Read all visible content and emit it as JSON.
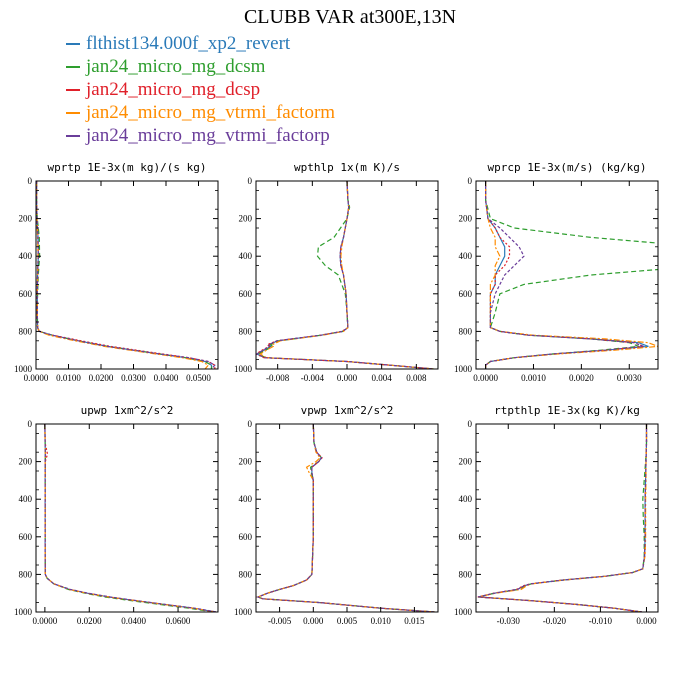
{
  "title": "CLUBB VAR at300E,13N",
  "series": [
    {
      "name": "flthist134.000f_xp2_revert",
      "color": "#2a7ab8"
    },
    {
      "name": "jan24_micro_mg_dcsm",
      "color": "#2e9e2e"
    },
    {
      "name": "jan24_micro_mg_dcsp",
      "color": "#e0202a"
    },
    {
      "name": "jan24_micro_mg_vtrmi_factorm",
      "color": "#ff8c00"
    },
    {
      "name": "jan24_micro_mg_vtrmi_factorp",
      "color": "#6a3d9a"
    }
  ],
  "chart_data": [
    {
      "type": "line",
      "title": "wprtp  1E-3x(m kg)/(s kg)",
      "xlim": [
        0,
        0.056
      ],
      "ylim": [
        0,
        1000
      ],
      "y_reversed": true,
      "xticks": [
        "0.0000",
        "0.0100",
        "0.0200",
        "0.0300",
        "0.0400",
        "0.0500"
      ],
      "xtick_values": [
        0,
        0.01,
        0.02,
        0.03,
        0.04,
        0.05
      ],
      "yticks": [
        "0",
        "200",
        "400",
        "600",
        "800",
        "1000"
      ],
      "ytick_values": [
        0,
        200,
        400,
        600,
        800,
        1000
      ],
      "y": [
        0,
        100,
        200,
        300,
        400,
        500,
        600,
        700,
        780,
        800,
        820,
        850,
        880,
        900,
        920,
        940,
        960,
        980,
        1000
      ],
      "values": [
        [
          0.0002,
          0.0002,
          0.0003,
          0.0006,
          0.0007,
          0.0005,
          0.0004,
          0.0004,
          0.0005,
          0.001,
          0.005,
          0.013,
          0.022,
          0.03,
          0.038,
          0.046,
          0.052,
          0.054,
          0.054
        ],
        [
          0.0002,
          0.0002,
          0.0004,
          0.001,
          0.0011,
          0.0007,
          0.0005,
          0.0004,
          0.0005,
          0.001,
          0.005,
          0.013,
          0.022,
          0.03,
          0.038,
          0.046,
          0.052,
          0.054,
          0.054
        ],
        [
          0.0002,
          0.0002,
          0.0003,
          0.0006,
          0.0007,
          0.0005,
          0.0004,
          0.0004,
          0.0005,
          0.001,
          0.005,
          0.014,
          0.023,
          0.031,
          0.039,
          0.047,
          0.053,
          0.055,
          0.055
        ],
        [
          0.0002,
          0.0002,
          0.0003,
          0.0005,
          0.0006,
          0.0005,
          0.0004,
          0.0004,
          0.0005,
          0.001,
          0.004,
          0.012,
          0.021,
          0.029,
          0.037,
          0.045,
          0.051,
          0.053,
          0.052
        ],
        [
          0.0002,
          0.0002,
          0.0003,
          0.0006,
          0.0007,
          0.0005,
          0.0004,
          0.0004,
          0.0005,
          0.001,
          0.005,
          0.013,
          0.022,
          0.03,
          0.038,
          0.047,
          0.053,
          0.055,
          0.054
        ]
      ]
    },
    {
      "type": "line",
      "title": "wpthlp  1x(m K)/s",
      "xlim": [
        -0.0105,
        0.0105
      ],
      "ylim": [
        0,
        1000
      ],
      "y_reversed": true,
      "xticks": [
        "-0.008",
        "-0.004",
        "0.000",
        "0.004",
        "0.008"
      ],
      "xtick_values": [
        -0.008,
        -0.004,
        0,
        0.004,
        0.008
      ],
      "yticks": [
        "0",
        "200",
        "400",
        "600",
        "800",
        "1000"
      ],
      "ytick_values": [
        0,
        200,
        400,
        600,
        800,
        1000
      ],
      "y": [
        0,
        100,
        140,
        200,
        300,
        350,
        400,
        450,
        500,
        600,
        700,
        780,
        800,
        820,
        850,
        870,
        880,
        900,
        920,
        940,
        960,
        980,
        1000
      ],
      "values": [
        [
          0.0,
          0.0001,
          0.0002,
          0.0,
          -0.0004,
          -0.0007,
          -0.0008,
          -0.0007,
          -0.0004,
          -0.0001,
          0.0,
          0.0001,
          -0.0005,
          -0.003,
          -0.008,
          -0.009,
          -0.0088,
          -0.0096,
          -0.0104,
          -0.0095,
          0.0,
          0.005,
          0.01
        ],
        [
          0.0,
          0.0001,
          0.0003,
          0.0,
          -0.0015,
          -0.0033,
          -0.0034,
          -0.0025,
          -0.001,
          -0.0002,
          0.0,
          0.0001,
          -0.0005,
          -0.003,
          -0.0078,
          -0.0088,
          -0.0086,
          -0.0094,
          -0.0102,
          -0.0094,
          0.0,
          0.005,
          0.01
        ],
        [
          0.0,
          0.0001,
          0.0002,
          0.0,
          -0.0004,
          -0.0007,
          -0.0008,
          -0.0007,
          -0.0004,
          -0.0001,
          0.0,
          0.0001,
          -0.0006,
          -0.0031,
          -0.0081,
          -0.0092,
          -0.009,
          -0.0098,
          -0.0105,
          -0.0096,
          0.0,
          0.005,
          0.01
        ],
        [
          0.0,
          0.0001,
          0.0002,
          0.0,
          -0.0004,
          -0.0006,
          -0.0007,
          -0.0006,
          -0.0004,
          -0.0001,
          0.0,
          0.0001,
          -0.0004,
          -0.0028,
          -0.0077,
          -0.0086,
          -0.0085,
          -0.0093,
          -0.01,
          -0.0093,
          0.0,
          0.005,
          0.01
        ],
        [
          0.0,
          0.0001,
          0.0002,
          0.0,
          -0.0004,
          -0.0007,
          -0.0008,
          -0.0007,
          -0.0004,
          -0.0001,
          0.0,
          0.0001,
          -0.0005,
          -0.003,
          -0.0081,
          -0.009,
          -0.0089,
          -0.0097,
          -0.0104,
          -0.0095,
          0.0,
          0.005,
          0.01
        ]
      ]
    },
    {
      "type": "line",
      "title": "wprcp  1E-3x(m/s) (kg/kg)",
      "xlim": [
        -0.0002,
        0.0036
      ],
      "ylim": [
        0,
        1000
      ],
      "y_reversed": true,
      "xticks": [
        "0.0000",
        "0.0010",
        "0.0020",
        "0.0030"
      ],
      "xtick_values": [
        0,
        0.001,
        0.002,
        0.003
      ],
      "yticks": [
        "0",
        "200",
        "400",
        "600",
        "800",
        "1000"
      ],
      "ytick_values": [
        0,
        200,
        400,
        600,
        800,
        1000
      ],
      "y": [
        0,
        100,
        200,
        250,
        300,
        350,
        400,
        450,
        500,
        550,
        600,
        700,
        780,
        800,
        820,
        840,
        860,
        880,
        900,
        920,
        940,
        960,
        980,
        1000
      ],
      "values": [
        [
          0.0,
          0.0,
          5e-05,
          0.0002,
          0.0003,
          0.0004,
          0.0004,
          0.0003,
          0.0002,
          0.0002,
          0.0001,
          0.0001,
          0.0001,
          0.0003,
          0.0009,
          0.0022,
          0.0032,
          0.0034,
          0.0025,
          0.0014,
          0.0006,
          0.0001,
          0.0,
          0.0
        ],
        [
          0.0,
          0.0,
          0.0001,
          0.0006,
          0.0022,
          0.0045,
          0.0056,
          0.0046,
          0.0022,
          0.0008,
          0.0003,
          0.0002,
          0.0001,
          0.0003,
          0.0009,
          0.0022,
          0.003,
          0.0032,
          0.0024,
          0.0014,
          0.0006,
          0.0001,
          0.0,
          0.0
        ],
        [
          0.0,
          0.0,
          5e-05,
          0.0002,
          0.0003,
          0.0005,
          0.0005,
          0.0004,
          0.0002,
          0.0002,
          0.0001,
          0.0001,
          0.0001,
          0.0003,
          0.0009,
          0.0022,
          0.0031,
          0.0033,
          0.0025,
          0.0014,
          0.0006,
          0.0001,
          0.0,
          0.0
        ],
        [
          0.0,
          0.0,
          5e-05,
          0.0001,
          0.0002,
          0.0002,
          0.0003,
          0.0002,
          0.0002,
          0.0001,
          0.0001,
          0.0001,
          0.0001,
          0.0003,
          0.001,
          0.0025,
          0.0034,
          0.0036,
          0.0027,
          0.0015,
          0.0006,
          0.0001,
          0.0,
          0.0
        ],
        [
          0.0,
          0.0,
          5e-05,
          0.0003,
          0.0005,
          0.0007,
          0.0008,
          0.0006,
          0.0004,
          0.0003,
          0.0002,
          0.0001,
          0.0001,
          0.0003,
          0.0009,
          0.0022,
          0.0031,
          0.0033,
          0.0025,
          0.0014,
          0.0006,
          0.0001,
          0.0,
          0.0
        ]
      ]
    },
    {
      "type": "line",
      "title": "upwp  1xm^2/s^2",
      "xlim": [
        -0.004,
        0.078
      ],
      "ylim": [
        0,
        1000
      ],
      "y_reversed": true,
      "xticks": [
        "0.0000",
        "0.0200",
        "0.0400",
        "0.0600"
      ],
      "xtick_values": [
        0,
        0.02,
        0.04,
        0.06
      ],
      "yticks": [
        "0",
        "200",
        "400",
        "600",
        "800",
        "1000"
      ],
      "ytick_values": [
        0,
        200,
        400,
        600,
        800,
        1000
      ],
      "y": [
        0,
        100,
        160,
        200,
        300,
        500,
        700,
        780,
        800,
        820,
        850,
        880,
        900,
        920,
        940,
        960,
        980,
        1000
      ],
      "values": [
        [
          0.0,
          0.0001,
          0.0002,
          0.0001,
          0.0001,
          0.0001,
          0.0001,
          0.0002,
          0.0002,
          0.001,
          0.004,
          0.011,
          0.019,
          0.029,
          0.041,
          0.054,
          0.067,
          0.077
        ],
        [
          0.0,
          0.0001,
          0.0003,
          0.0002,
          0.0001,
          0.0001,
          0.0001,
          0.0002,
          0.0002,
          0.001,
          0.004,
          0.0105,
          0.018,
          0.027,
          0.039,
          0.052,
          0.065,
          0.076
        ],
        [
          0.0,
          0.0001,
          0.0012,
          0.0002,
          0.0001,
          0.0001,
          0.0001,
          0.0002,
          0.0002,
          0.001,
          0.004,
          0.011,
          0.019,
          0.029,
          0.041,
          0.054,
          0.067,
          0.077
        ],
        [
          0.0,
          0.0001,
          0.0002,
          0.0001,
          0.0001,
          0.0001,
          0.0001,
          0.0002,
          0.0002,
          0.001,
          0.004,
          0.011,
          0.019,
          0.029,
          0.041,
          0.054,
          0.067,
          0.077
        ],
        [
          0.0,
          0.0001,
          0.0002,
          0.0001,
          0.0001,
          0.0001,
          0.0001,
          0.0002,
          0.0002,
          0.001,
          0.004,
          0.0115,
          0.0195,
          0.0295,
          0.0415,
          0.0545,
          0.0675,
          0.0775
        ]
      ]
    },
    {
      "type": "line",
      "title": "vpwp  1xm^2/s^2",
      "xlim": [
        -0.0085,
        0.0185
      ],
      "ylim": [
        0,
        1000
      ],
      "y_reversed": true,
      "xticks": [
        "-0.005",
        "0.000",
        "0.005",
        "0.010",
        "0.015"
      ],
      "xtick_values": [
        -0.005,
        0,
        0.005,
        0.01,
        0.015
      ],
      "yticks": [
        "0",
        "200",
        "400",
        "600",
        "800",
        "1000"
      ],
      "ytick_values": [
        0,
        200,
        400,
        600,
        800,
        1000
      ],
      "y": [
        0,
        100,
        150,
        180,
        200,
        230,
        260,
        300,
        400,
        600,
        800,
        830,
        860,
        880,
        900,
        920,
        930,
        950,
        980,
        1000
      ],
      "values": [
        [
          0.0,
          0.0001,
          0.0005,
          0.0012,
          0.0008,
          -0.0002,
          -0.0002,
          0.0,
          0.0,
          0.0,
          -0.0002,
          -0.001,
          -0.003,
          -0.005,
          -0.0068,
          -0.0082,
          -0.0075,
          0.001,
          0.01,
          0.018
        ],
        [
          0.0,
          0.0001,
          0.0005,
          0.0012,
          0.0008,
          -0.0004,
          -0.0003,
          0.0,
          0.0,
          0.0,
          -0.0002,
          -0.001,
          -0.003,
          -0.005,
          -0.0068,
          -0.0082,
          -0.0075,
          0.001,
          0.01,
          0.018
        ],
        [
          0.0,
          0.0001,
          0.0005,
          0.0013,
          0.0008,
          -0.0002,
          -0.0002,
          0.0,
          0.0,
          0.0,
          -0.0002,
          -0.001,
          -0.003,
          -0.005,
          -0.0068,
          -0.0082,
          -0.0075,
          0.001,
          0.01,
          0.018
        ],
        [
          0.0,
          0.0001,
          0.0004,
          0.001,
          0.0004,
          -0.001,
          -0.0006,
          0.0,
          0.0,
          0.0,
          -0.0002,
          -0.001,
          -0.003,
          -0.005,
          -0.0068,
          -0.0082,
          -0.0075,
          0.001,
          0.01,
          0.018
        ],
        [
          0.0,
          0.0001,
          0.0005,
          0.0012,
          0.0008,
          -0.0002,
          -0.0002,
          0.0,
          0.0,
          0.0,
          -0.0002,
          -0.001,
          -0.003,
          -0.005,
          -0.0068,
          -0.0082,
          -0.0075,
          0.001,
          0.01,
          0.018
        ]
      ]
    },
    {
      "type": "line",
      "title": "rtpthlp  1E-3x(kg K)/kg",
      "xlim": [
        -0.037,
        0.0025
      ],
      "ylim": [
        0,
        1000
      ],
      "y_reversed": true,
      "xticks": [
        "-0.030",
        "-0.020",
        "-0.010",
        "0.000"
      ],
      "xtick_values": [
        -0.03,
        -0.02,
        -0.01,
        0
      ],
      "yticks": [
        "0",
        "200",
        "400",
        "600",
        "800",
        "1000"
      ],
      "ytick_values": [
        0,
        200,
        400,
        600,
        800,
        1000
      ],
      "y": [
        0,
        100,
        200,
        300,
        400,
        500,
        600,
        700,
        770,
        790,
        810,
        830,
        850,
        860,
        880,
        900,
        920,
        940,
        960,
        980,
        1000
      ],
      "values": [
        [
          0.0,
          0.0,
          -0.0001,
          -0.0002,
          -0.0003,
          -0.0003,
          -0.0003,
          -0.0004,
          -0.0008,
          -0.003,
          -0.009,
          -0.018,
          -0.025,
          -0.0265,
          -0.028,
          -0.033,
          -0.0365,
          -0.025,
          -0.015,
          -0.007,
          -0.001
        ],
        [
          0.0,
          0.0,
          -0.0002,
          -0.0005,
          -0.0008,
          -0.0007,
          -0.0005,
          -0.0005,
          -0.0008,
          -0.003,
          -0.009,
          -0.018,
          -0.025,
          -0.0262,
          -0.0275,
          -0.033,
          -0.0365,
          -0.025,
          -0.015,
          -0.007,
          -0.001
        ],
        [
          0.0,
          0.0,
          -0.0001,
          -0.0002,
          -0.0003,
          -0.0003,
          -0.0003,
          -0.0004,
          -0.0008,
          -0.003,
          -0.0092,
          -0.0182,
          -0.0252,
          -0.0267,
          -0.0282,
          -0.0332,
          -0.0366,
          -0.025,
          -0.015,
          -0.007,
          -0.001
        ],
        [
          0.0,
          0.0,
          -0.0001,
          -0.0001,
          -0.0002,
          -0.0002,
          -0.0002,
          -0.0003,
          -0.0008,
          -0.003,
          -0.0088,
          -0.0178,
          -0.0248,
          -0.026,
          -0.0272,
          -0.0328,
          -0.0364,
          -0.025,
          -0.015,
          -0.007,
          -0.001
        ],
        [
          0.0,
          0.0,
          -0.0001,
          -0.0002,
          -0.0003,
          -0.0003,
          -0.0003,
          -0.0004,
          -0.0008,
          -0.003,
          -0.009,
          -0.018,
          -0.025,
          -0.0265,
          -0.028,
          -0.033,
          -0.0365,
          -0.025,
          -0.015,
          -0.007,
          -0.001
        ]
      ]
    }
  ]
}
